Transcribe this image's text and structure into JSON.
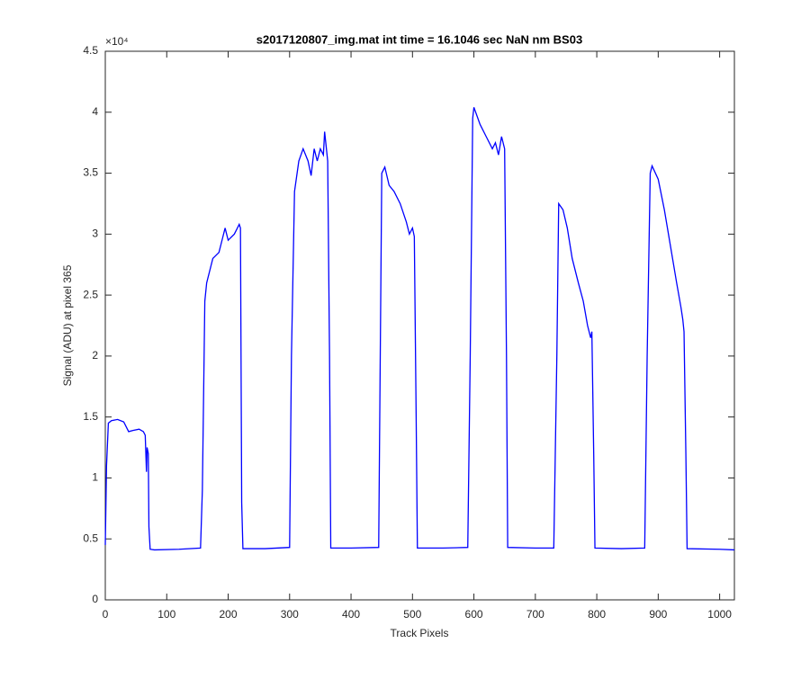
{
  "chart_data": {
    "type": "line",
    "title": "s2017120807_img.mat int time = 16.1046 sec  NaN nm BS03",
    "xlabel": "Track Pixels",
    "ylabel": "Signal (ADU) at pixel 365",
    "y_multiplier": "×10⁴",
    "xlim": [
      0,
      1024
    ],
    "ylim": [
      0,
      45000
    ],
    "xticks": [
      0,
      100,
      200,
      300,
      400,
      500,
      600,
      700,
      800,
      900,
      1000
    ],
    "yticks": [
      0,
      {
        "value": 5000,
        "label": "0.5"
      },
      {
        "value": 10000,
        "label": "1"
      },
      {
        "value": 15000,
        "label": "1.5"
      },
      {
        "value": 20000,
        "label": "2"
      },
      {
        "value": 25000,
        "label": "2.5"
      },
      {
        "value": 30000,
        "label": "3"
      },
      {
        "value": 35000,
        "label": "3.5"
      },
      {
        "value": 40000,
        "label": "4"
      },
      {
        "value": 45000,
        "label": "4.5"
      }
    ],
    "x": [
      0,
      2,
      5,
      10,
      20,
      30,
      38,
      45,
      55,
      62,
      65,
      67,
      68,
      70,
      71,
      73,
      80,
      120,
      155,
      158,
      162,
      165,
      175,
      185,
      190,
      195,
      200,
      210,
      218,
      220,
      222,
      224,
      260,
      300,
      303,
      308,
      315,
      322,
      330,
      335,
      340,
      345,
      350,
      355,
      357,
      362,
      365,
      367,
      400,
      445,
      450,
      455,
      462,
      470,
      480,
      490,
      495,
      500,
      503,
      506,
      508,
      550,
      590,
      594,
      598,
      600,
      610,
      620,
      630,
      635,
      640,
      645,
      650,
      653,
      655,
      700,
      730,
      735,
      738,
      745,
      752,
      760,
      770,
      778,
      785,
      790,
      792,
      795,
      797,
      840,
      878,
      882,
      887,
      890,
      900,
      910,
      920,
      930,
      937,
      940,
      942,
      945,
      947,
      1000,
      1024
    ],
    "series": [
      {
        "name": "signal",
        "color": "#0000ff",
        "values": [
          4500,
          11000,
          14500,
          14700,
          14800,
          14600,
          13800,
          13900,
          14000,
          13800,
          13500,
          10500,
          12500,
          12000,
          6000,
          4150,
          4100,
          4150,
          4250,
          9000,
          24500,
          26000,
          28000,
          28500,
          29500,
          30500,
          29500,
          30000,
          30800,
          30500,
          8000,
          4200,
          4200,
          4300,
          20000,
          33500,
          36000,
          37000,
          36000,
          34800,
          37000,
          36000,
          37000,
          36500,
          38400,
          36000,
          20000,
          4250,
          4250,
          4300,
          35000,
          35500,
          34000,
          33500,
          32500,
          31000,
          30000,
          30500,
          29800,
          15000,
          4250,
          4250,
          4300,
          20000,
          39500,
          40400,
          39000,
          38000,
          37000,
          37500,
          36500,
          38000,
          37000,
          20000,
          4300,
          4250,
          4250,
          20000,
          32500,
          32000,
          30500,
          28000,
          26000,
          24500,
          22500,
          21500,
          22000,
          12000,
          4250,
          4200,
          4250,
          20000,
          35000,
          35600,
          34500,
          32000,
          29000,
          26000,
          24000,
          23000,
          22000,
          12000,
          4200,
          4150,
          4100
        ]
      }
    ]
  }
}
